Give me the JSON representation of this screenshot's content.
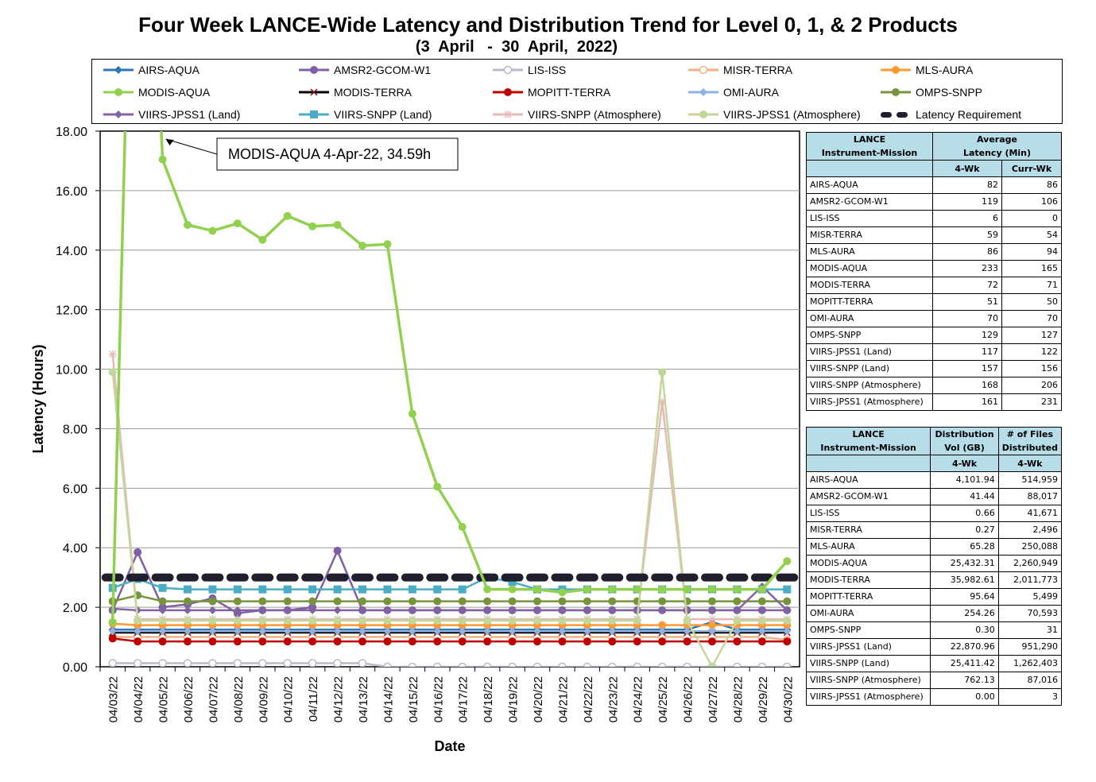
{
  "title": "Four Week LANCE-Wide Latency and Distribution Trend for Level 0, 1, & 2 Products",
  "subtitle": "(3  April   -  30  April,  2022)",
  "colors": {
    "AIRS-AQUA": "#2e75b6",
    "AMSR2-GCOM-W1": "#7f5fa6",
    "LIS-ISS": "#b8bcc8",
    "MISR-TERRA": "#f4b183",
    "MLS-AURA": "#ff9933",
    "MODIS-AQUA": "#92d050",
    "MODIS-TERRA": "#000000",
    "MOPITT-TERRA": "#c00000",
    "OMI-AURA": "#8db3e2",
    "OMPS-SNPP": "#77933c",
    "VIIRS-JPSS1 (Land)": "#8064a2",
    "VIIRS-SNPP (Land)": "#4bacc6",
    "VIIRS-SNPP (Atmosphere)": "#e6b9b8",
    "VIIRS-JPSS1 (Atmosphere)": "#c4d79b",
    "Latency Requirement": "#1f1f2e"
  },
  "legend": [
    {
      "label": "AIRS-AQUA",
      "marker": "diamond"
    },
    {
      "label": "AMSR2-GCOM-W1",
      "marker": "circle"
    },
    {
      "label": "LIS-ISS",
      "marker": "circle-open"
    },
    {
      "label": "MISR-TERRA",
      "marker": "circle-open"
    },
    {
      "label": "MLS-AURA",
      "marker": "circle"
    },
    {
      "label": "MODIS-AQUA",
      "marker": "circle"
    },
    {
      "label": "MODIS-TERRA",
      "marker": "x"
    },
    {
      "label": "MOPITT-TERRA",
      "marker": "circle"
    },
    {
      "label": "OMI-AURA",
      "marker": "diamond"
    },
    {
      "label": "OMPS-SNPP",
      "marker": "circle"
    },
    {
      "label": "VIIRS-JPSS1 (Land)",
      "marker": "diamond"
    },
    {
      "label": "VIIRS-SNPP (Land)",
      "marker": "square"
    },
    {
      "label": "VIIRS-SNPP (Atmosphere)",
      "marker": "star"
    },
    {
      "label": "VIIRS-JPSS1 (Atmosphere)",
      "marker": "circle"
    },
    {
      "label": "Latency Requirement",
      "marker": "dash"
    }
  ],
  "chart_data": {
    "type": "line",
    "title": "Four Week LANCE-Wide Latency and Distribution Trend for Level 0, 1, & 2 Products",
    "subtitle": "(3  April   -  30  April,  2022)",
    "xlabel": "Date",
    "ylabel": "Latency (Hours)",
    "ylim": [
      0,
      18
    ],
    "yticks": [
      "0.00",
      "2.00",
      "4.00",
      "6.00",
      "8.00",
      "10.00",
      "12.00",
      "14.00",
      "16.00",
      "18.00"
    ],
    "grid": true,
    "legend_position": "top",
    "categories": [
      "04/03/22",
      "04/04/22",
      "04/05/22",
      "04/06/22",
      "04/07/22",
      "04/08/22",
      "04/09/22",
      "04/10/22",
      "04/11/22",
      "04/12/22",
      "04/13/22",
      "04/14/22",
      "04/15/22",
      "04/16/22",
      "04/17/22",
      "04/18/22",
      "04/19/22",
      "04/20/22",
      "04/21/22",
      "04/22/22",
      "04/23/22",
      "04/24/22",
      "04/25/22",
      "04/26/22",
      "04/27/22",
      "04/28/22",
      "04/29/22",
      "04/30/22"
    ],
    "annotation": {
      "text": "MODIS-AQUA 4-Apr-22, 34.59h",
      "x": "04/04/22",
      "y": 34.59
    },
    "series": [
      {
        "name": "AIRS-AQUA",
        "values": [
          1.25,
          1.25,
          1.25,
          1.25,
          1.25,
          1.25,
          1.25,
          1.25,
          1.25,
          1.25,
          1.25,
          1.25,
          1.25,
          1.25,
          1.25,
          1.25,
          1.25,
          1.25,
          1.25,
          1.25,
          1.25,
          1.25,
          1.25,
          1.25,
          1.5,
          1.25,
          1.25,
          1.25
        ]
      },
      {
        "name": "AMSR2-GCOM-W1",
        "values": [
          1.9,
          3.85,
          2.0,
          2.1,
          2.3,
          1.8,
          1.9,
          1.9,
          2.0,
          3.9,
          1.9,
          1.9,
          1.9,
          1.9,
          1.9,
          1.9,
          1.9,
          1.9,
          1.9,
          1.9,
          1.9,
          1.9,
          1.9,
          1.9,
          1.9,
          1.9,
          1.9,
          1.9
        ]
      },
      {
        "name": "LIS-ISS",
        "values": [
          0.12,
          0.12,
          0.12,
          0.12,
          0.12,
          0.12,
          0.12,
          0.12,
          0.12,
          0.12,
          0.12,
          0.0,
          0.0,
          0.0,
          0.0,
          0.0,
          0.0,
          0.0,
          0.0,
          0.0,
          0.0,
          0.0,
          0.0,
          0.0,
          0.0,
          0.0,
          0.0,
          0.0
        ]
      },
      {
        "name": "MISR-TERRA",
        "values": [
          1.0,
          1.0,
          1.0,
          1.0,
          1.0,
          1.0,
          1.0,
          1.0,
          1.0,
          1.0,
          1.0,
          1.0,
          1.0,
          1.0,
          1.0,
          1.0,
          1.0,
          1.0,
          1.0,
          1.0,
          1.0,
          1.0,
          1.0,
          1.0,
          1.0,
          1.0,
          1.0,
          0.9
        ]
      },
      {
        "name": "MLS-AURA",
        "values": [
          1.45,
          1.4,
          1.4,
          1.4,
          1.4,
          1.4,
          1.4,
          1.4,
          1.4,
          1.4,
          1.4,
          1.4,
          1.4,
          1.4,
          1.4,
          1.4,
          1.4,
          1.4,
          1.4,
          1.4,
          1.4,
          1.4,
          1.4,
          1.4,
          1.4,
          1.4,
          1.4,
          1.4
        ]
      },
      {
        "name": "MODIS-AQUA",
        "values": [
          1.5,
          34.59,
          17.05,
          14.85,
          14.65,
          14.9,
          14.35,
          15.15,
          14.8,
          14.85,
          14.15,
          14.2,
          8.5,
          6.05,
          4.7,
          2.6,
          2.6,
          2.6,
          2.5,
          2.6,
          2.6,
          2.6,
          2.6,
          2.6,
          2.6,
          2.6,
          2.6,
          3.55
        ]
      },
      {
        "name": "MODIS-TERRA",
        "values": [
          1.15,
          1.15,
          1.15,
          1.15,
          1.15,
          1.15,
          1.15,
          1.15,
          1.15,
          1.15,
          1.15,
          1.15,
          1.15,
          1.15,
          1.15,
          1.15,
          1.15,
          1.15,
          1.15,
          1.15,
          1.15,
          1.15,
          1.15,
          1.15,
          1.15,
          1.15,
          1.15,
          1.15
        ]
      },
      {
        "name": "MOPITT-TERRA",
        "values": [
          0.95,
          0.85,
          0.85,
          0.85,
          0.85,
          0.85,
          0.85,
          0.85,
          0.85,
          0.85,
          0.85,
          0.85,
          0.85,
          0.85,
          0.85,
          0.85,
          0.85,
          0.85,
          0.85,
          0.85,
          0.85,
          0.85,
          0.85,
          0.85,
          0.85,
          0.85,
          0.85,
          0.85
        ]
      },
      {
        "name": "OMI-AURA",
        "values": [
          1.2,
          1.2,
          1.2,
          1.2,
          1.2,
          1.2,
          1.2,
          1.2,
          1.2,
          1.2,
          1.2,
          1.2,
          1.2,
          1.2,
          1.2,
          1.2,
          1.2,
          1.2,
          1.2,
          1.2,
          1.2,
          1.2,
          1.2,
          1.2,
          1.2,
          1.2,
          1.2,
          1.2
        ]
      },
      {
        "name": "OMPS-SNPP",
        "values": [
          2.2,
          2.4,
          2.2,
          2.2,
          2.2,
          2.2,
          2.2,
          2.2,
          2.2,
          2.2,
          2.2,
          2.2,
          2.2,
          2.2,
          2.2,
          2.2,
          2.2,
          2.2,
          2.2,
          2.2,
          2.2,
          2.2,
          2.2,
          2.2,
          2.2,
          2.2,
          2.2,
          2.2
        ]
      },
      {
        "name": "VIIRS-JPSS1 (Land)",
        "values": [
          1.95,
          1.9,
          1.9,
          1.9,
          1.9,
          1.9,
          1.9,
          1.9,
          1.9,
          1.9,
          1.9,
          1.9,
          1.9,
          1.9,
          1.9,
          1.9,
          1.9,
          1.9,
          1.9,
          1.9,
          1.9,
          1.9,
          1.9,
          1.9,
          1.9,
          1.9,
          2.7,
          1.9
        ]
      },
      {
        "name": "VIIRS-SNPP (Land)",
        "values": [
          2.65,
          2.95,
          2.65,
          2.6,
          2.6,
          2.6,
          2.6,
          2.6,
          2.6,
          2.6,
          2.6,
          2.6,
          2.6,
          2.6,
          2.6,
          3.0,
          2.85,
          2.6,
          2.6,
          2.6,
          2.6,
          2.6,
          2.6,
          2.6,
          2.6,
          2.6,
          2.6,
          2.6
        ]
      },
      {
        "name": "VIIRS-SNPP (Atmosphere)",
        "values": [
          10.5,
          1.6,
          1.6,
          1.6,
          1.6,
          1.6,
          1.6,
          1.6,
          1.6,
          1.6,
          1.6,
          1.6,
          1.6,
          1.6,
          1.6,
          1.6,
          1.6,
          1.6,
          1.6,
          1.6,
          1.6,
          1.6,
          8.9,
          1.6,
          1.6,
          1.6,
          1.6,
          1.6
        ]
      },
      {
        "name": "VIIRS-JPSS1 (Atmosphere)",
        "values": [
          9.9,
          1.55,
          1.55,
          1.55,
          1.55,
          1.55,
          1.55,
          1.55,
          1.55,
          1.55,
          1.55,
          1.55,
          1.55,
          1.55,
          1.55,
          1.55,
          1.55,
          1.55,
          1.55,
          1.55,
          1.55,
          1.55,
          9.9,
          1.55,
          0.0,
          1.55,
          1.55,
          1.55
        ]
      },
      {
        "name": "Latency Requirement",
        "values": [
          3,
          3,
          3,
          3,
          3,
          3,
          3,
          3,
          3,
          3,
          3,
          3,
          3,
          3,
          3,
          3,
          3,
          3,
          3,
          3,
          3,
          3,
          3,
          3,
          3,
          3,
          3,
          3
        ]
      }
    ]
  },
  "latency_table": {
    "header_name": [
      "LANCE",
      "Instrument-Mission"
    ],
    "header_avg": [
      "Average",
      "Latency (Min)"
    ],
    "sub_4wk": "4-Wk",
    "sub_curr": "Curr-Wk",
    "rows": [
      {
        "name": "AIRS-AQUA",
        "wk4": "82",
        "curr": "86"
      },
      {
        "name": "AMSR2-GCOM-W1",
        "wk4": "119",
        "curr": "106"
      },
      {
        "name": "LIS-ISS",
        "wk4": "6",
        "curr": "0"
      },
      {
        "name": "MISR-TERRA",
        "wk4": "59",
        "curr": "54"
      },
      {
        "name": "MLS-AURA",
        "wk4": "86",
        "curr": "94"
      },
      {
        "name": "MODIS-AQUA",
        "wk4": "233",
        "curr": "165"
      },
      {
        "name": "MODIS-TERRA",
        "wk4": "72",
        "curr": "71"
      },
      {
        "name": "MOPITT-TERRA",
        "wk4": "51",
        "curr": "50"
      },
      {
        "name": "OMI-AURA",
        "wk4": "70",
        "curr": "70"
      },
      {
        "name": "OMPS-SNPP",
        "wk4": "129",
        "curr": "127"
      },
      {
        "name": "VIIRS-JPSS1 (Land)",
        "wk4": "117",
        "curr": "122"
      },
      {
        "name": "VIIRS-SNPP (Land)",
        "wk4": "157",
        "curr": "156"
      },
      {
        "name": "VIIRS-SNPP (Atmosphere)",
        "wk4": "168",
        "curr": "206"
      },
      {
        "name": "VIIRS-JPSS1 (Atmosphere)",
        "wk4": "161",
        "curr": "231"
      }
    ]
  },
  "distribution_table": {
    "header_name": [
      "LANCE",
      "Instrument-Mission"
    ],
    "header_vol": [
      "Distribution",
      "Vol (GB)"
    ],
    "header_files": [
      "# of Files",
      "Distributed"
    ],
    "sub_4wk": "4-Wk",
    "rows": [
      {
        "name": "AIRS-AQUA",
        "vol": "4,101.94",
        "files": "514,959"
      },
      {
        "name": "AMSR2-GCOM-W1",
        "vol": "41.44",
        "files": "88,017"
      },
      {
        "name": "LIS-ISS",
        "vol": "0.66",
        "files": "41,671"
      },
      {
        "name": "MISR-TERRA",
        "vol": "0.27",
        "files": "2,496"
      },
      {
        "name": "MLS-AURA",
        "vol": "65.28",
        "files": "250,088"
      },
      {
        "name": "MODIS-AQUA",
        "vol": "25,432.31",
        "files": "2,260,949"
      },
      {
        "name": "MODIS-TERRA",
        "vol": "35,982.61",
        "files": "2,011,773"
      },
      {
        "name": "MOPITT-TERRA",
        "vol": "95.64",
        "files": "5,499"
      },
      {
        "name": "OMI-AURA",
        "vol": "254.26",
        "files": "70,593"
      },
      {
        "name": "OMPS-SNPP",
        "vol": "0.30",
        "files": "31"
      },
      {
        "name": "VIIRS-JPSS1 (Land)",
        "vol": "22,870.96",
        "files": "951,290"
      },
      {
        "name": "VIIRS-SNPP (Land)",
        "vol": "25,411.42",
        "files": "1,262,403"
      },
      {
        "name": "VIIRS-SNPP (Atmosphere)",
        "vol": "762.13",
        "files": "87,016"
      },
      {
        "name": "VIIRS-JPSS1 (Atmosphere)",
        "vol": "0.00",
        "files": "3"
      }
    ]
  }
}
